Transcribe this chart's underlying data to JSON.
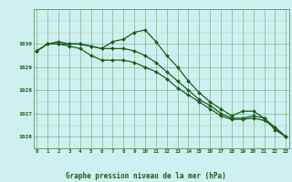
{
  "title": "Graphe pression niveau de la mer (hPa)",
  "bg_color": "#cff0f0",
  "grid_color_major": "#3a8a3a",
  "grid_color_minor": "#7abf7a",
  "line_color": "#1a5c1a",
  "x_min": 0,
  "x_max": 23,
  "y_min": 1025.5,
  "y_max": 1031.5,
  "y_ticks": [
    1026,
    1027,
    1028,
    1029,
    1030
  ],
  "x_ticks": [
    0,
    1,
    2,
    3,
    4,
    5,
    6,
    7,
    8,
    9,
    10,
    11,
    12,
    13,
    14,
    15,
    16,
    17,
    18,
    19,
    20,
    21,
    22,
    23
  ],
  "series": [
    [
      1029.7,
      1030.0,
      1030.0,
      1030.0,
      1030.0,
      1029.9,
      1029.8,
      1030.1,
      1030.2,
      1030.5,
      1030.6,
      1030.1,
      1029.5,
      1029.0,
      1028.4,
      1027.9,
      1027.5,
      1027.2,
      1026.9,
      1027.1,
      1027.1,
      1026.8,
      1026.3,
      1026.0
    ],
    [
      1029.7,
      1030.0,
      1030.0,
      1029.9,
      1029.8,
      1029.5,
      1029.3,
      1029.3,
      1029.3,
      1029.2,
      1029.0,
      1028.8,
      1028.5,
      1028.1,
      1027.8,
      1027.5,
      1027.2,
      1026.9,
      1026.75,
      1026.75,
      1026.8,
      1026.7,
      1026.4,
      1026.0
    ],
    [
      1029.7,
      1030.0,
      1030.1,
      1030.0,
      1030.0,
      1029.9,
      1029.8,
      1029.8,
      1029.8,
      1029.7,
      1029.5,
      1029.2,
      1028.8,
      1028.4,
      1028.0,
      1027.6,
      1027.35,
      1027.0,
      1026.8,
      1026.8,
      1026.9,
      1026.8,
      1026.4,
      1026.0
    ]
  ]
}
